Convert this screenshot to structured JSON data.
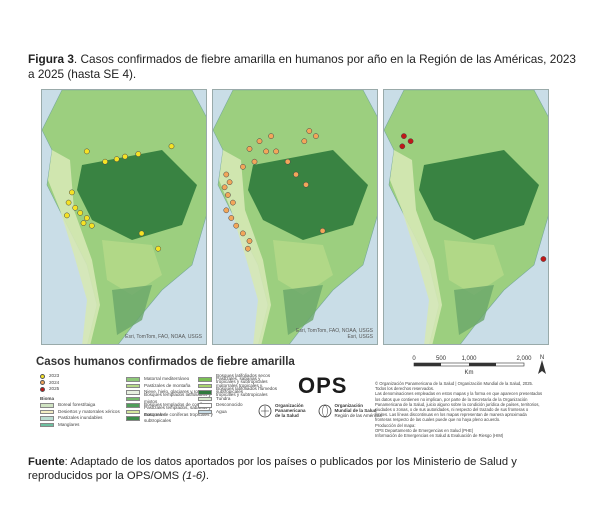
{
  "caption": {
    "label": "Figura 3",
    "text": ". Casos confirmados de fiebre amarilla en humanos por año en la Región de las Américas, 2023 a 2025 (hasta SE 4)."
  },
  "map_credit": {
    "line1": "Esri, TomTom, FAO, NOAA, USGS",
    "line2": "Esri, USGS"
  },
  "maps": [
    {
      "year": "2023",
      "dot_color": "#f5e225",
      "points": [
        [
          0.78,
          0.22
        ],
        [
          0.58,
          0.25
        ],
        [
          0.5,
          0.26
        ],
        [
          0.45,
          0.27
        ],
        [
          0.27,
          0.24
        ],
        [
          0.38,
          0.28
        ],
        [
          0.18,
          0.4
        ],
        [
          0.16,
          0.44
        ],
        [
          0.2,
          0.46
        ],
        [
          0.23,
          0.48
        ],
        [
          0.27,
          0.5
        ],
        [
          0.25,
          0.52
        ],
        [
          0.15,
          0.49
        ],
        [
          0.3,
          0.53
        ],
        [
          0.6,
          0.56
        ],
        [
          0.7,
          0.62
        ]
      ]
    },
    {
      "year": "2024",
      "dot_color": "#f2a65a",
      "points": [
        [
          0.58,
          0.16
        ],
        [
          0.62,
          0.18
        ],
        [
          0.55,
          0.2
        ],
        [
          0.35,
          0.18
        ],
        [
          0.28,
          0.2
        ],
        [
          0.22,
          0.23
        ],
        [
          0.32,
          0.24
        ],
        [
          0.38,
          0.24
        ],
        [
          0.25,
          0.28
        ],
        [
          0.18,
          0.3
        ],
        [
          0.08,
          0.33
        ],
        [
          0.1,
          0.36
        ],
        [
          0.07,
          0.38
        ],
        [
          0.09,
          0.41
        ],
        [
          0.12,
          0.44
        ],
        [
          0.08,
          0.47
        ],
        [
          0.11,
          0.5
        ],
        [
          0.14,
          0.53
        ],
        [
          0.18,
          0.56
        ],
        [
          0.22,
          0.59
        ],
        [
          0.21,
          0.62
        ],
        [
          0.45,
          0.28
        ],
        [
          0.5,
          0.33
        ],
        [
          0.56,
          0.37
        ],
        [
          0.66,
          0.55
        ]
      ]
    },
    {
      "year": "2025",
      "dot_color": "#c01818",
      "points": [
        [
          0.12,
          0.18
        ],
        [
          0.16,
          0.2
        ],
        [
          0.11,
          0.22
        ],
        [
          0.96,
          0.66
        ]
      ]
    }
  ],
  "legend": {
    "title": "Casos humanos confirmados de fiebre amarilla",
    "years": [
      {
        "label": "2023",
        "color": "#f5e225"
      },
      {
        "label": "2024",
        "color": "#f2a65a"
      },
      {
        "label": "2025",
        "color": "#c01818"
      }
    ],
    "bioma_title": "Bioma",
    "biomes_col1": [
      {
        "label": "Boreal forest/taiga",
        "color": "#cfe3c2"
      },
      {
        "label": "Desiertos y matorrales xéricos",
        "color": "#f2ecc2"
      },
      {
        "label": "Pastizales inundables",
        "color": "#b9dcd0"
      },
      {
        "label": "Manglares",
        "color": "#6dc0a0"
      }
    ],
    "biomes_col2": [
      {
        "label": "Matorral mediterráneo",
        "color": "#8fc97a"
      },
      {
        "label": "Pastizales de montaña",
        "color": "#b7d98a"
      },
      {
        "label": "Nieve, hielo, glaciares y rocas",
        "color": "#e8f0e0"
      },
      {
        "label": "Bosques templados latifoliados y mixtos",
        "color": "#74b86a"
      },
      {
        "label": "Bosques templados de coníferas",
        "color": "#4f9e5a"
      },
      {
        "label": "Pastizales templados, sabanas y matorrales",
        "color": "#d4e69e"
      },
      {
        "label": "Bosques de coníferas tropicales y subtropicales",
        "color": "#3d8c4a"
      }
    ],
    "biomes_col3": [
      {
        "label": "Bosques latifoliados secos tropicales y subtropicales",
        "color": "#7cbf56"
      },
      {
        "label": "Pastizales, sabanas y matorrales tropicales y subtropicales",
        "color": "#a8d36e"
      },
      {
        "label": "Bosques latifoliados húmedos tropicales y subtropicales",
        "color": "#2f7a3c"
      },
      {
        "label": "Tundra",
        "color": "#d9ead0"
      },
      {
        "label": "Desconocido",
        "color": "#ffffff"
      },
      {
        "label": "Agua",
        "color": "#c9dde7"
      }
    ]
  },
  "ops": {
    "logo": "OPS",
    "org1_line1": "Organización",
    "org1_line2": "Panamericana",
    "org1_line3": "de la Salud",
    "org2_line1": "Organización",
    "org2_line2": "Mundial de la Salud",
    "org2_line3": "Región de las Américas"
  },
  "scale": {
    "t0": "0",
    "t1": "500",
    "t2": "1,000",
    "t3": "2,000",
    "unit": "Km",
    "north": "N"
  },
  "disclaimer": [
    "© Organización Panamericana de la Salud | Organización Mundial de la Salud, 2025.",
    "Todos los derechos reservados.",
    "Las denominaciones empleadas en estos mapas y la forma en que aparecen presentados",
    "los datos que contienen no implican, por parte de la Secretaría de la Organización",
    "Panamericana de la Salud, juicio alguno sobre la condición jurídica de países, territorios,",
    "ciudades o zonas, o de sus autoridades, ni respecto del trazado de sus fronteras o",
    "límites. Las líneas discontinuas en los mapas representan de manera aproximada",
    "fronteras respecto de las cuales puede que no haya pleno acuerdo.",
    "Producción del mapa:",
    "OPS Departamento de Emergencias en Salud (PHE)",
    "Información de Emergencias en Salud & Evaluación de Riesgo (HIM)"
  ],
  "source": {
    "label": "Fuente",
    "text": ": Adaptado de los datos aportados por los países o publicados por los Ministerio de Salud y reproducidos por la OPS/OMS ",
    "ref": "(1-6)",
    "end": "."
  }
}
